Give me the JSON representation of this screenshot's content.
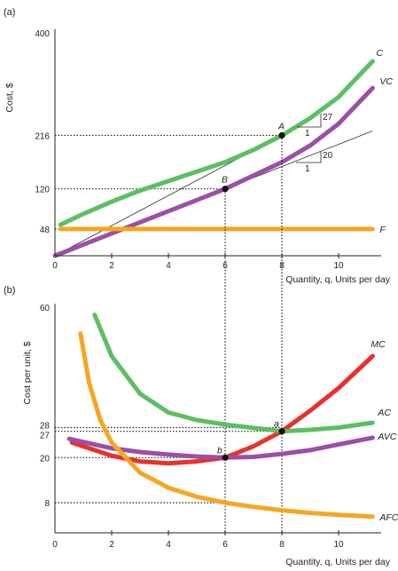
{
  "chart_data": [
    {
      "panel": "(a)",
      "type": "line",
      "ylabel": "Cost, $",
      "xlabel": "Quantity, q, Units per day",
      "xlim": [
        0,
        11.5
      ],
      "ylim": [
        0,
        400
      ],
      "x_ticks": [
        0,
        2,
        4,
        6,
        8,
        10
      ],
      "y_ticks": [
        48,
        120,
        216,
        400
      ],
      "series": [
        {
          "name": "C",
          "color": "#5cbf63",
          "x": [
            0.2,
            1,
            2,
            3,
            4,
            5,
            6,
            7,
            8,
            9,
            10,
            11.2
          ],
          "y": [
            56,
            75,
            97,
            117,
            134,
            151,
            168,
            190,
            216,
            247,
            285,
            349
          ]
        },
        {
          "name": "VC",
          "color": "#9b4fa8",
          "x": [
            0,
            1,
            2,
            3,
            4,
            5,
            6,
            7,
            8,
            9,
            10,
            11.2
          ],
          "y": [
            0,
            20,
            40,
            60,
            80,
            100,
            120,
            144,
            168,
            198,
            237,
            301
          ]
        },
        {
          "name": "F",
          "color": "#f5a623",
          "x": [
            0.2,
            11.2
          ],
          "y": [
            48,
            48
          ]
        }
      ],
      "rays": [
        {
          "x": [
            0,
            8
          ],
          "y": [
            0,
            216
          ]
        },
        {
          "x": [
            0,
            11.2
          ],
          "y": [
            0,
            224
          ]
        }
      ],
      "points": [
        {
          "label": "A",
          "x": 8,
          "y": 216
        },
        {
          "label": "B",
          "x": 6,
          "y": 120
        }
      ],
      "slope_annotations": [
        {
          "run": "1",
          "rise": "27"
        },
        {
          "run": "1",
          "rise": "20"
        }
      ]
    },
    {
      "panel": "(b)",
      "type": "line",
      "ylabel": "Cost per unit, $",
      "xlabel": "Quantity, q, Units per day",
      "xlim": [
        0,
        11.5
      ],
      "ylim": [
        0,
        60
      ],
      "x_ticks": [
        0,
        2,
        4,
        6,
        8,
        10
      ],
      "y_ticks": [
        8,
        20,
        27,
        28,
        60
      ],
      "series": [
        {
          "name": "MC",
          "color": "#e8312a",
          "x": [
            0.6,
            2,
            3,
            4,
            5,
            6,
            7,
            8,
            9,
            10,
            11.2
          ],
          "y": [
            24,
            20.5,
            19,
            18.5,
            19,
            20,
            23,
            27,
            32.5,
            38.5,
            47
          ]
        },
        {
          "name": "AC",
          "color": "#5cbf63",
          "x": [
            1.4,
            2,
            3,
            4,
            5,
            6,
            7,
            8,
            9,
            10,
            11.2
          ],
          "y": [
            58,
            47,
            37,
            32,
            30,
            28.8,
            27.9,
            27,
            27.4,
            28,
            29.3
          ]
        },
        {
          "name": "AVC",
          "color": "#9b4fa8",
          "x": [
            0.5,
            2,
            3,
            4,
            5,
            6,
            7,
            8,
            9,
            10,
            11.2
          ],
          "y": [
            25,
            22.5,
            21.5,
            20.8,
            20.3,
            20,
            20.2,
            21,
            22,
            23.5,
            25.3
          ]
        },
        {
          "name": "AFC",
          "color": "#f5a623",
          "x": [
            0.9,
            1.2,
            1.6,
            2,
            3,
            4,
            5,
            6,
            7,
            8,
            9,
            10,
            11.2
          ],
          "y": [
            53,
            40,
            30,
            24,
            16,
            12,
            9.6,
            8,
            6.9,
            6,
            5.3,
            4.8,
            4.3
          ]
        }
      ],
      "points": [
        {
          "label": "a",
          "x": 8,
          "y": 27
        },
        {
          "label": "b",
          "x": 6,
          "y": 20
        }
      ]
    }
  ]
}
